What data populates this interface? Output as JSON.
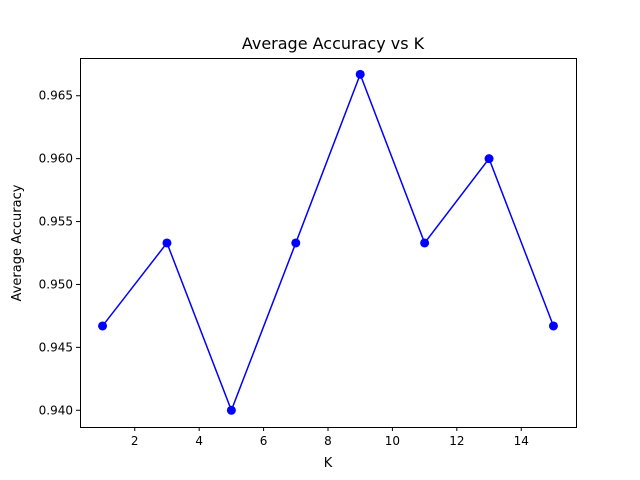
{
  "chart_data": {
    "type": "line",
    "title": "Average Accuracy vs K",
    "xlabel": "K",
    "ylabel": "Average Accuracy",
    "x": [
      1,
      3,
      5,
      7,
      9,
      11,
      13,
      15
    ],
    "series": [
      {
        "values": [
          0.9467,
          0.9533,
          0.94,
          0.9533,
          0.9667,
          0.9533,
          0.96,
          0.9467
        ],
        "color": "#0000ff",
        "marker": "circle"
      }
    ],
    "xlim": [
      0.3,
      15.7
    ],
    "ylim": [
      0.93867,
      0.968
    ],
    "xticks": [
      2,
      4,
      6,
      8,
      10,
      12,
      14
    ],
    "xtick_labels": [
      "2",
      "4",
      "6",
      "8",
      "10",
      "12",
      "14"
    ],
    "yticks": [
      0.94,
      0.945,
      0.95,
      0.955,
      0.96,
      0.965
    ],
    "ytick_labels": [
      "0.940",
      "0.945",
      "0.950",
      "0.955",
      "0.960",
      "0.965"
    ],
    "grid": false,
    "legend": "none"
  }
}
